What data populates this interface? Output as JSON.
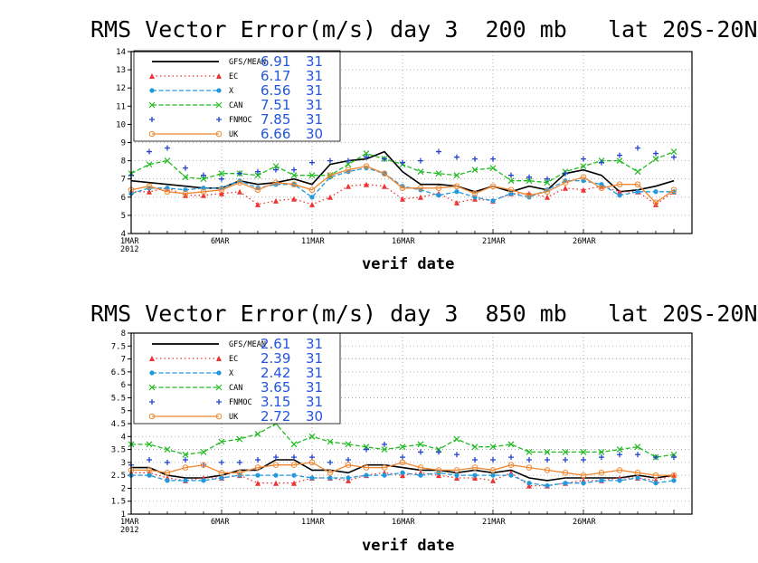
{
  "chart_data": [
    {
      "type": "line",
      "title": "RMS Vector Error(m/s) day 3  200 mb   lat 20S-20N",
      "xlabel": "verif date",
      "ylabel": "",
      "ylim": [
        4,
        14
      ],
      "yticks": [
        "4",
        "5",
        "6",
        "7",
        "8",
        "9",
        "10",
        "11",
        "12",
        "13",
        "14"
      ],
      "xticks": [
        "1MAR\n2012",
        "6MAR",
        "11MAR",
        "16MAR",
        "21MAR",
        "26MAR"
      ],
      "x": [
        "1MAR",
        "2MAR",
        "3MAR",
        "4MAR",
        "5MAR",
        "6MAR",
        "7MAR",
        "8MAR",
        "9MAR",
        "10MAR",
        "11MAR",
        "12MAR",
        "13MAR",
        "14MAR",
        "15MAR",
        "16MAR",
        "17MAR",
        "18MAR",
        "19MAR",
        "20MAR",
        "21MAR",
        "22MAR",
        "23MAR",
        "24MAR",
        "25MAR",
        "26MAR",
        "27MAR",
        "28MAR",
        "29MAR",
        "30MAR",
        "31MAR"
      ],
      "grid": true,
      "legend_position": "top-left",
      "series": [
        {
          "name": "GFS/MEAN",
          "mean": "6.91",
          "count": "31",
          "color": "#000000",
          "style": "solid",
          "marker": "none",
          "values": [
            6.9,
            6.8,
            6.7,
            6.6,
            6.5,
            6.5,
            6.9,
            6.7,
            6.8,
            7.0,
            6.7,
            7.8,
            8.0,
            8.1,
            8.5,
            7.4,
            6.7,
            6.7,
            6.6,
            6.3,
            6.6,
            6.3,
            6.6,
            6.4,
            7.3,
            7.5,
            7.2,
            6.3,
            6.4,
            6.6,
            6.9
          ]
        },
        {
          "name": "EC",
          "mean": "6.17",
          "count": "31",
          "color": "#ee3333",
          "style": "dotted",
          "marker": "triangle",
          "values": [
            6.3,
            6.3,
            6.5,
            6.1,
            6.1,
            6.2,
            6.3,
            5.6,
            5.8,
            5.9,
            5.6,
            6.0,
            6.6,
            6.7,
            6.6,
            5.9,
            6.0,
            6.2,
            5.7,
            5.9,
            5.8,
            6.2,
            6.2,
            6.0,
            6.5,
            6.4,
            6.6,
            6.3,
            6.3,
            5.6,
            6.3
          ]
        },
        {
          "name": "X",
          "mean": "6.56",
          "count": "31",
          "color": "#2299dd",
          "style": "dashed",
          "marker": "circle",
          "values": [
            6.2,
            6.5,
            6.5,
            6.4,
            6.5,
            6.5,
            6.9,
            6.5,
            6.7,
            6.7,
            6.0,
            7.1,
            7.4,
            7.6,
            7.3,
            6.6,
            6.4,
            6.1,
            6.3,
            6.0,
            5.8,
            6.2,
            6.0,
            6.4,
            6.9,
            6.9,
            6.7,
            6.1,
            6.3,
            6.3,
            6.3
          ]
        },
        {
          "name": "CAN",
          "mean": "7.51",
          "count": "31",
          "color": "#22bb22",
          "style": "dashed",
          "marker": "x",
          "values": [
            7.3,
            7.8,
            8.0,
            7.1,
            7.0,
            7.3,
            7.3,
            7.2,
            7.7,
            7.2,
            7.2,
            7.2,
            7.8,
            8.4,
            8.1,
            7.8,
            7.4,
            7.3,
            7.2,
            7.5,
            7.6,
            6.9,
            6.9,
            6.8,
            7.4,
            7.7,
            8.0,
            8.0,
            7.4,
            8.1,
            8.5
          ]
        },
        {
          "name": "FNMOC",
          "mean": "7.85",
          "count": "31",
          "color": "#2244cc",
          "style": "none",
          "marker": "plus",
          "values": [
            7.2,
            8.5,
            8.7,
            7.6,
            7.2,
            7.0,
            7.3,
            7.4,
            7.5,
            7.5,
            7.9,
            8.0,
            8.0,
            8.2,
            8.1,
            7.9,
            8.0,
            8.5,
            8.2,
            8.1,
            8.1,
            7.2,
            7.1,
            7.0,
            7.3,
            8.1,
            7.9,
            8.3,
            8.7,
            8.4,
            8.2
          ]
        },
        {
          "name": "UK",
          "mean": "6.66",
          "count": "30",
          "color": "#ee8833",
          "style": "solid",
          "marker": "opencircle",
          "values": [
            6.4,
            6.6,
            6.3,
            6.2,
            6.3,
            6.4,
            6.8,
            6.4,
            6.8,
            6.7,
            6.4,
            7.2,
            7.5,
            7.7,
            7.3,
            6.5,
            6.5,
            6.5,
            6.6,
            6.2,
            6.6,
            6.4,
            6.1,
            6.3,
            6.8,
            7.1,
            6.5,
            6.7,
            6.7,
            5.7,
            6.4
          ]
        }
      ]
    },
    {
      "type": "line",
      "title": "RMS Vector Error(m/s) day 3  850 mb   lat 20S-20N",
      "xlabel": "verif date",
      "ylabel": "",
      "ylim": [
        1,
        8
      ],
      "yticks": [
        "1",
        "1.5",
        "2",
        "2.5",
        "3",
        "3.5",
        "4",
        "4.5",
        "5",
        "5.5",
        "6",
        "6.5",
        "7",
        "7.5",
        "8"
      ],
      "xticks": [
        "1MAR\n2012",
        "6MAR",
        "11MAR",
        "16MAR",
        "21MAR",
        "26MAR"
      ],
      "x": [
        "1MAR",
        "2MAR",
        "3MAR",
        "4MAR",
        "5MAR",
        "6MAR",
        "7MAR",
        "8MAR",
        "9MAR",
        "10MAR",
        "11MAR",
        "12MAR",
        "13MAR",
        "14MAR",
        "15MAR",
        "16MAR",
        "17MAR",
        "18MAR",
        "19MAR",
        "20MAR",
        "21MAR",
        "22MAR",
        "23MAR",
        "24MAR",
        "25MAR",
        "26MAR",
        "27MAR",
        "28MAR",
        "29MAR",
        "30MAR",
        "31MAR"
      ],
      "grid": true,
      "legend_position": "top-left",
      "series": [
        {
          "name": "GFS/MEAN",
          "mean": "2.61",
          "count": "31",
          "color": "#000000",
          "style": "solid",
          "marker": "none",
          "values": [
            2.8,
            2.8,
            2.5,
            2.4,
            2.4,
            2.5,
            2.7,
            2.7,
            3.1,
            3.1,
            2.7,
            2.7,
            2.6,
            2.9,
            2.9,
            2.8,
            2.7,
            2.7,
            2.6,
            2.7,
            2.6,
            2.7,
            2.4,
            2.3,
            2.4,
            2.4,
            2.4,
            2.4,
            2.5,
            2.4,
            2.5
          ]
        },
        {
          "name": "EC",
          "mean": "2.39",
          "count": "31",
          "color": "#ee3333",
          "style": "dotted",
          "marker": "triangle",
          "values": [
            2.6,
            2.6,
            2.4,
            2.3,
            2.4,
            2.4,
            2.5,
            2.2,
            2.2,
            2.2,
            2.4,
            2.4,
            2.3,
            2.5,
            2.6,
            2.5,
            2.6,
            2.5,
            2.4,
            2.4,
            2.3,
            2.6,
            2.1,
            2.1,
            2.2,
            2.3,
            2.3,
            2.4,
            2.4,
            2.3,
            2.5
          ]
        },
        {
          "name": "X",
          "mean": "2.42",
          "count": "31",
          "color": "#2299dd",
          "style": "dashed",
          "marker": "circle",
          "values": [
            2.5,
            2.5,
            2.3,
            2.3,
            2.3,
            2.4,
            2.5,
            2.5,
            2.5,
            2.5,
            2.4,
            2.4,
            2.4,
            2.5,
            2.5,
            2.6,
            2.5,
            2.6,
            2.5,
            2.5,
            2.5,
            2.5,
            2.2,
            2.1,
            2.2,
            2.2,
            2.3,
            2.3,
            2.4,
            2.2,
            2.3
          ]
        },
        {
          "name": "CAN",
          "mean": "3.65",
          "count": "31",
          "color": "#22bb22",
          "style": "dashed",
          "marker": "x",
          "values": [
            3.7,
            3.7,
            3.5,
            3.3,
            3.4,
            3.8,
            3.9,
            4.1,
            4.5,
            3.7,
            4.0,
            3.8,
            3.7,
            3.6,
            3.5,
            3.6,
            3.7,
            3.5,
            3.9,
            3.6,
            3.6,
            3.7,
            3.4,
            3.4,
            3.4,
            3.4,
            3.4,
            3.5,
            3.6,
            3.2,
            3.3
          ]
        },
        {
          "name": "FNMOC",
          "mean": "3.15",
          "count": "31",
          "color": "#2244cc",
          "style": "none",
          "marker": "plus",
          "values": [
            2.9,
            3.1,
            3.0,
            3.1,
            2.9,
            3.0,
            3.0,
            3.1,
            3.2,
            3.2,
            3.2,
            3.0,
            3.1,
            3.5,
            3.7,
            3.2,
            3.4,
            3.4,
            3.3,
            3.1,
            3.1,
            3.2,
            3.1,
            3.1,
            3.1,
            3.1,
            3.2,
            3.3,
            3.3,
            3.2,
            3.2
          ]
        },
        {
          "name": "UK",
          "mean": "2.72",
          "count": "30",
          "color": "#ee8833",
          "style": "solid",
          "marker": "opencircle",
          "values": [
            2.7,
            2.7,
            2.6,
            2.8,
            2.9,
            2.6,
            2.6,
            2.8,
            2.9,
            2.9,
            3.0,
            2.6,
            2.9,
            2.8,
            2.8,
            3.0,
            2.8,
            2.7,
            2.7,
            2.8,
            2.7,
            2.9,
            2.8,
            2.7,
            2.6,
            2.5,
            2.6,
            2.7,
            2.6,
            2.5,
            2.5
          ]
        }
      ]
    }
  ]
}
